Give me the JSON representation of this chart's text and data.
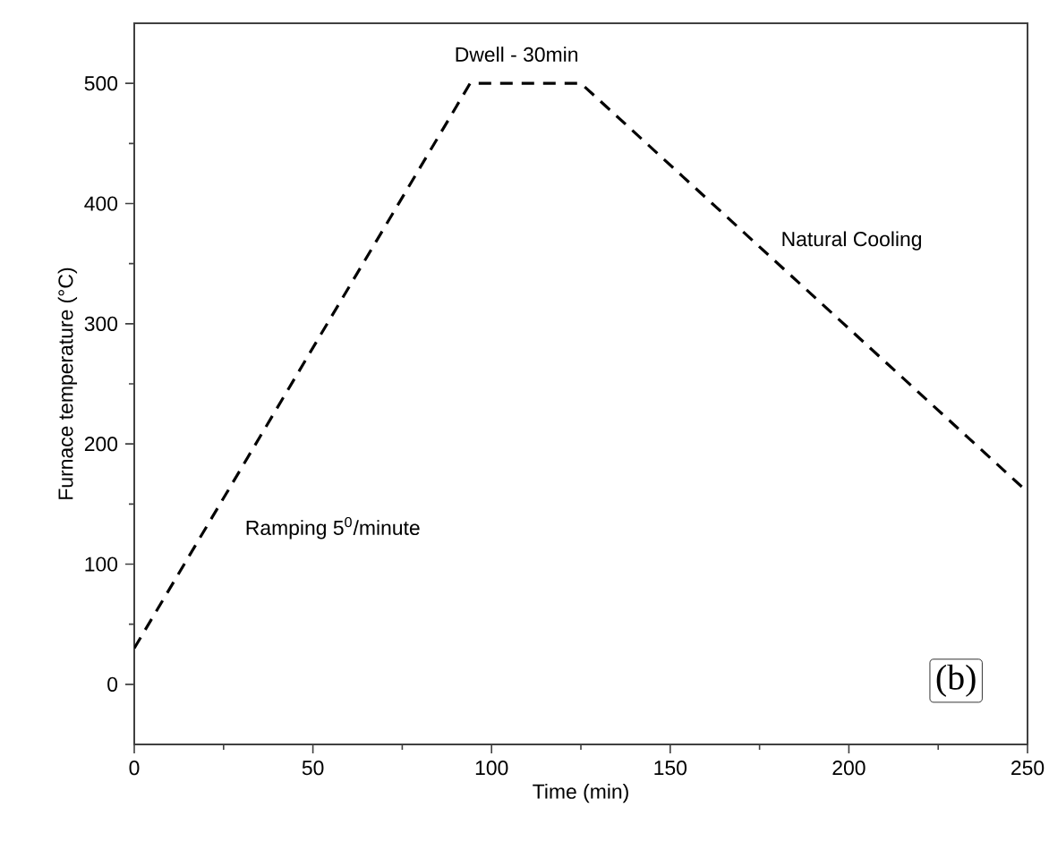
{
  "chart_data": {
    "type": "line",
    "xlabel": "Time (min)",
    "ylabel": "Furnace temperature (°C)",
    "x": [
      0,
      94,
      125,
      250
    ],
    "series": [
      {
        "color": "#000000",
        "values": [
          30,
          500,
          500,
          160
        ]
      }
    ],
    "xlim": [
      0,
      250
    ],
    "xticks": [
      0,
      50,
      100,
      150,
      200,
      250
    ],
    "ylim": [
      -50,
      550
    ],
    "yticks": [
      0,
      100,
      200,
      300,
      400,
      500
    ],
    "line_style": "dashed",
    "marker": "none",
    "grid": false,
    "annotations": [
      "Dwell - 30min",
      "Natural Cooling",
      "Ramping 5$^{0}$/minute",
      "(b)"
    ]
  }
}
